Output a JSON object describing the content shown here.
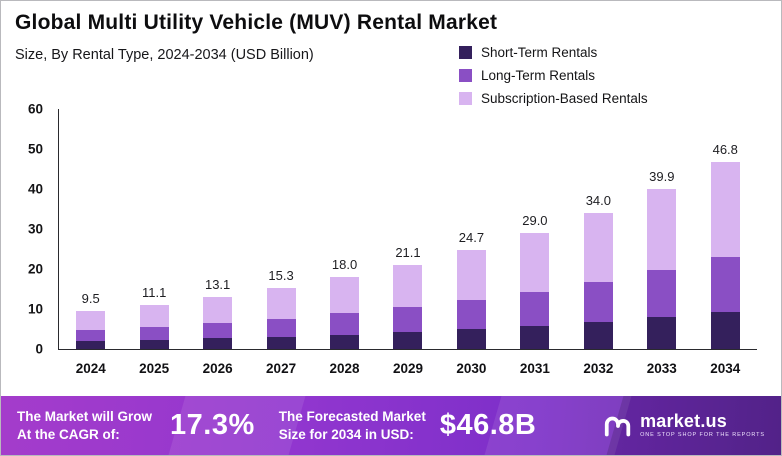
{
  "title": "Global Multi Utility Vehicle (MUV) Rental Market",
  "subtitle": "Size, By Rental Type, 2024-2034 (USD Billion)",
  "legend": [
    {
      "label": "Short-Term Rentals",
      "color": "#34205c"
    },
    {
      "label": "Long-Term Rentals",
      "color": "#8a4fc4"
    },
    {
      "label": "Subscription-Based Rentals",
      "color": "#d8b4f0"
    }
  ],
  "chart_data": {
    "type": "bar",
    "stacked": true,
    "title": "Global Multi Utility Vehicle (MUV) Rental Market",
    "subtitle": "Size, By Rental Type, 2024-2034 (USD Billion)",
    "xlabel": "",
    "ylabel": "USD Billion",
    "ylim": [
      0,
      60
    ],
    "yticks": [
      0,
      10,
      20,
      30,
      40,
      50,
      60
    ],
    "grid": false,
    "legend_position": "top-right",
    "categories": [
      "2024",
      "2025",
      "2026",
      "2027",
      "2028",
      "2029",
      "2030",
      "2031",
      "2032",
      "2033",
      "2034"
    ],
    "series": [
      {
        "name": "Short-Term Rentals",
        "color": "#34205c",
        "values": [
          2.0,
          2.3,
          2.7,
          3.1,
          3.6,
          4.2,
          5.0,
          5.8,
          6.8,
          8.0,
          9.2
        ]
      },
      {
        "name": "Long-Term Rentals",
        "color": "#8a4fc4",
        "values": [
          2.7,
          3.2,
          3.8,
          4.5,
          5.3,
          6.2,
          7.2,
          8.5,
          10.0,
          11.8,
          13.8
        ]
      },
      {
        "name": "Subscription-Based Rentals",
        "color": "#d8b4f0",
        "values": [
          4.8,
          5.6,
          6.6,
          7.7,
          9.1,
          10.7,
          12.5,
          14.7,
          17.2,
          20.1,
          23.8
        ]
      }
    ],
    "totals": [
      9.5,
      11.1,
      13.1,
      15.3,
      18.0,
      21.1,
      24.7,
      29.0,
      34.0,
      39.9,
      46.8
    ],
    "totals_display": [
      "9.5",
      "11.1",
      "13.1",
      "15.3",
      "18.0",
      "21.1",
      "24.7",
      "29.0",
      "34.0",
      "39.9",
      "46.8"
    ]
  },
  "banner": {
    "cagr_label_line1": "The Market will Grow",
    "cagr_label_line2": "At the CAGR of:",
    "cagr_value": "17.3%",
    "size_label_line1": "The Forecasted Market",
    "size_label_line2": "Size for 2034 in USD:",
    "size_value": "$46.8B",
    "brand": "market.us",
    "brand_tagline": "ONE STOP SHOP FOR THE REPORTS"
  }
}
